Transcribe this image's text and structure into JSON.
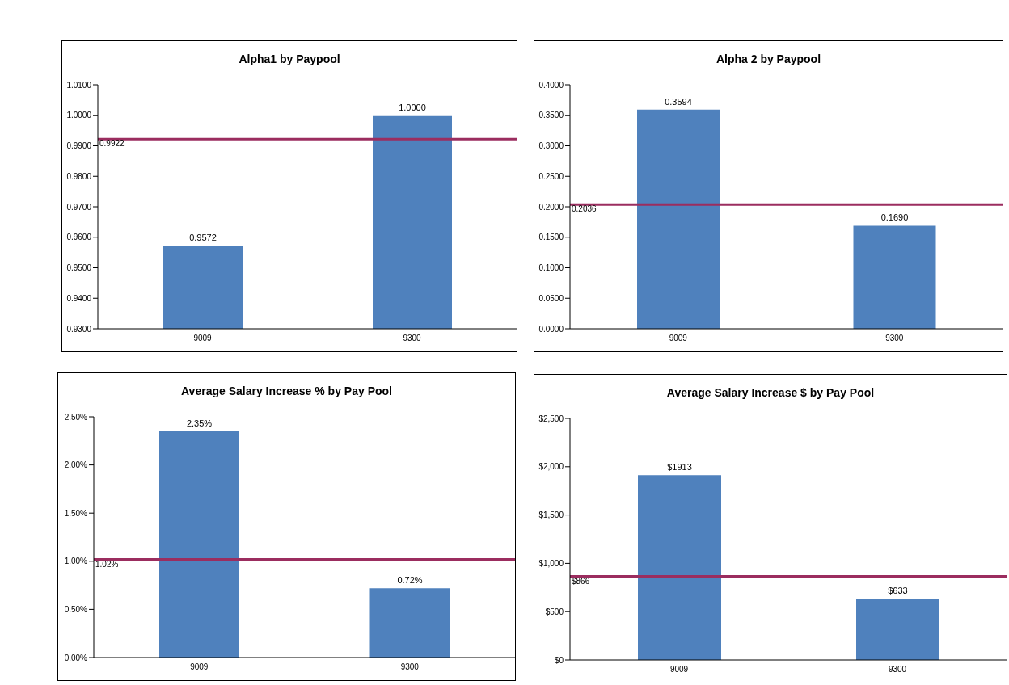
{
  "chart_data": [
    {
      "type": "bar",
      "title": "Alpha1 by Paypool",
      "categories": [
        "9009",
        "9300"
      ],
      "values": [
        0.9572,
        1.0
      ],
      "value_labels": [
        "0.9572",
        "1.0000"
      ],
      "color": "#4f81bd",
      "ylim": [
        0.93,
        1.01
      ],
      "yticks": [
        {
          "value": 0.93,
          "label": "0.9300"
        },
        {
          "value": 0.94,
          "label": "0.9400"
        },
        {
          "value": 0.95,
          "label": "0.9500"
        },
        {
          "value": 0.96,
          "label": "0.9600"
        },
        {
          "value": 0.97,
          "label": "0.9700"
        },
        {
          "value": 0.98,
          "label": "0.9800"
        },
        {
          "value": 0.99,
          "label": "0.9900"
        },
        {
          "value": 1.0,
          "label": "1.0000"
        },
        {
          "value": 1.01,
          "label": "1.0100"
        }
      ],
      "ref_lines": [
        {
          "axis": "y",
          "value": 0.9922,
          "label": "0.9922",
          "color": "#9b2d5f"
        }
      ],
      "grid": false,
      "legend": false
    },
    {
      "type": "bar",
      "title": "Alpha 2 by Paypool",
      "categories": [
        "9009",
        "9300"
      ],
      "values": [
        0.3594,
        0.169
      ],
      "value_labels": [
        "0.3594",
        "0.1690"
      ],
      "color": "#4f81bd",
      "ylim": [
        0,
        0.4
      ],
      "yticks": [
        {
          "value": 0,
          "label": "0.0000"
        },
        {
          "value": 0.05,
          "label": "0.0500"
        },
        {
          "value": 0.1,
          "label": "0.1000"
        },
        {
          "value": 0.15,
          "label": "0.1500"
        },
        {
          "value": 0.2,
          "label": "0.2000"
        },
        {
          "value": 0.25,
          "label": "0.2500"
        },
        {
          "value": 0.3,
          "label": "0.3000"
        },
        {
          "value": 0.35,
          "label": "0.3500"
        },
        {
          "value": 0.4,
          "label": "0.4000"
        }
      ],
      "ref_lines": [
        {
          "axis": "y",
          "value": 0.2036,
          "label": "0.2036",
          "color": "#9b2d5f"
        }
      ],
      "grid": false,
      "legend": false
    },
    {
      "type": "bar",
      "title": "Average Salary Increase % by Pay Pool",
      "categories": [
        "9009",
        "9300"
      ],
      "values": [
        2.35,
        0.72
      ],
      "value_labels": [
        "2.35%",
        "0.72%"
      ],
      "color": "#4f81bd",
      "ylim": [
        0,
        2.5
      ],
      "yticks": [
        {
          "value": 0,
          "label": "0.00%"
        },
        {
          "value": 0.5,
          "label": "0.50%"
        },
        {
          "value": 1,
          "label": "1.00%"
        },
        {
          "value": 1.5,
          "label": "1.50%"
        },
        {
          "value": 2,
          "label": "2.00%"
        },
        {
          "value": 2.5,
          "label": "2.50%"
        }
      ],
      "ref_lines": [
        {
          "axis": "y",
          "value": 1.02,
          "label": "1.02%",
          "color": "#9b2d5f"
        }
      ],
      "grid": false,
      "legend": false
    },
    {
      "type": "bar",
      "title": "Average Salary Increase $ by Pay Pool",
      "categories": [
        "9009",
        "9300"
      ],
      "values": [
        1913,
        633
      ],
      "value_labels": [
        "$1913",
        "$633"
      ],
      "color": "#4f81bd",
      "ylim": [
        0,
        2500
      ],
      "yticks": [
        {
          "value": 0,
          "label": "$0"
        },
        {
          "value": 500,
          "label": "$500"
        },
        {
          "value": 1000,
          "label": "$1,000"
        },
        {
          "value": 1500,
          "label": "$1,500"
        },
        {
          "value": 2000,
          "label": "$2,000"
        },
        {
          "value": 2500,
          "label": "$2,500"
        }
      ],
      "ref_lines": [
        {
          "axis": "y",
          "value": 866,
          "label": "$866",
          "color": "#9b2d5f"
        }
      ],
      "grid": false,
      "legend": false
    }
  ]
}
